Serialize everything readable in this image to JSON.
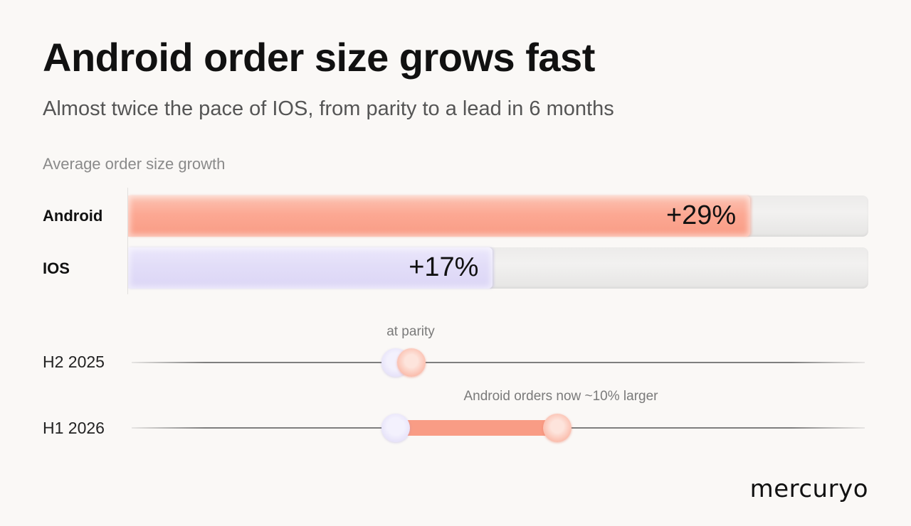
{
  "title": "Android order size grows fast",
  "subtitle": "Almost twice the pace of IOS, from parity to a lead in 6 months",
  "brand": "mercuryo",
  "colors": {
    "android": "#f99c85",
    "ios": "#dcd6f6",
    "track": "#ecebea",
    "background": "#faf8f6"
  },
  "chart_data": [
    {
      "type": "bar",
      "orientation": "horizontal",
      "title": "Average order size growth",
      "categories": [
        "Android",
        "IOS"
      ],
      "values": [
        29,
        17
      ],
      "value_labels": [
        "+29%",
        "+17%"
      ],
      "xlim": [
        0,
        34.5
      ],
      "grid": false
    },
    {
      "type": "dumbbell",
      "categories": [
        "H2 2025",
        "H1 2026"
      ],
      "series": [
        {
          "name": "IOS",
          "values": [
            100,
            100
          ]
        },
        {
          "name": "Android",
          "values": [
            101,
            110
          ]
        }
      ],
      "xlim": [
        83.7,
        129
      ],
      "annotations": [
        "at parity",
        "Android orders now ~10% larger"
      ],
      "grid": false
    }
  ]
}
